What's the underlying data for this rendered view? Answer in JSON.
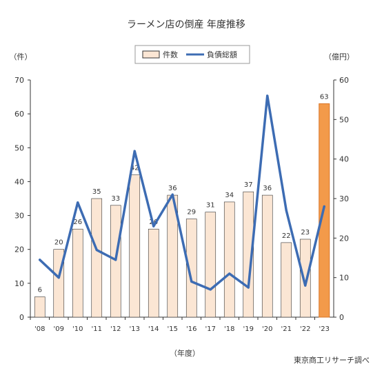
{
  "chart_data": {
    "type": "bar+line",
    "title": "ラーメン店の倒産 年度推移",
    "left_unit": "（件）",
    "right_unit": "（億円）",
    "xlabel": "（年度）",
    "source": "東京商工リサーチ調べ",
    "categories": [
      "'08",
      "'09",
      "'10",
      "'11",
      "'12",
      "'13",
      "'14",
      "'15",
      "'16",
      "'17",
      "'18",
      "'19",
      "'20",
      "'21",
      "'22",
      "'23"
    ],
    "left_ticks": [
      "0",
      "10",
      "20",
      "30",
      "40",
      "50",
      "60",
      "70"
    ],
    "right_ticks": [
      "0",
      "10",
      "20",
      "30",
      "40",
      "50",
      "60"
    ],
    "ylim_left": [
      0,
      70
    ],
    "ylim_right": [
      0,
      60
    ],
    "series": [
      {
        "name": "件数",
        "type": "bar",
        "axis": "left",
        "values": [
          6,
          20,
          26,
          35,
          33,
          42,
          26,
          36,
          29,
          31,
          34,
          37,
          36,
          22,
          23,
          63
        ],
        "labels": [
          "6",
          "20",
          "26",
          "35",
          "33",
          "42",
          "26",
          "36",
          "29",
          "31",
          "34",
          "37",
          "36",
          "22",
          "23",
          "63"
        ],
        "color": "#fbe6d4",
        "highlight_color": "#f39a4a"
      },
      {
        "name": "負債総額",
        "type": "line",
        "axis": "right",
        "values": [
          14.5,
          10,
          29,
          17,
          14.5,
          42,
          23,
          31,
          9,
          7,
          11,
          7.5,
          56,
          27,
          8,
          28
        ],
        "color": "#3d6cb3"
      }
    ],
    "grid": false,
    "legend_position": "top-center"
  }
}
